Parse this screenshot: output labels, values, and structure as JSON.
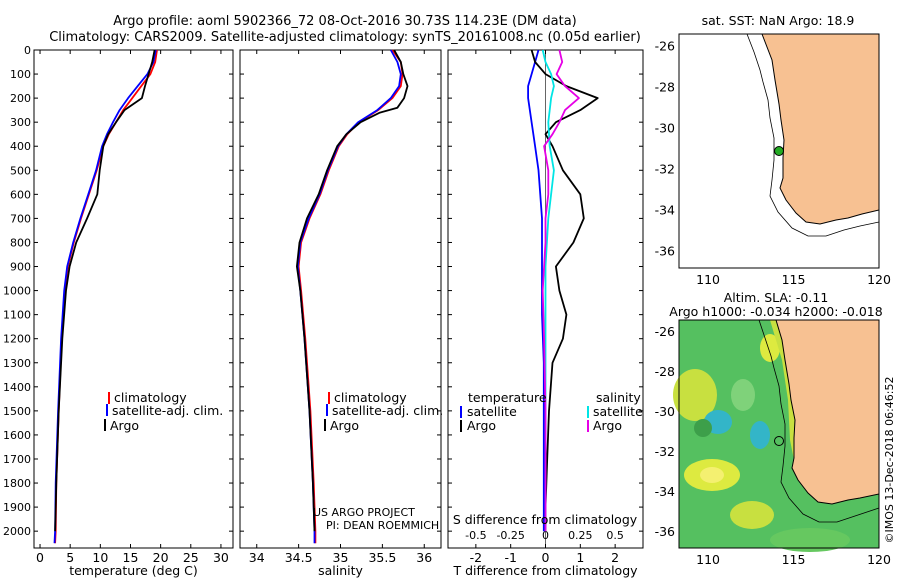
{
  "header": {
    "title_line1": "Argo profile: aoml 5902366_72 08-Oct-2016 30.73S 114.23E (DM data)",
    "title_line2": "Climatology: CARS2009. Satellite-adjusted climatology: synTS_20161008.nc (0.05d earlier)"
  },
  "colors": {
    "climatology": "#ff0000",
    "satellite": "#0000ff",
    "argo": "#000000",
    "salinity_sat": "#00e5e5",
    "salinity_argo": "#e600e6",
    "land": "#f7c192"
  },
  "pressure_ticks": [
    "0",
    "100",
    "200",
    "300",
    "400",
    "500",
    "600",
    "700",
    "800",
    "900",
    "1000",
    "1100",
    "1200",
    "1300",
    "1400",
    "1500",
    "1600",
    "1700",
    "1800",
    "1900",
    "2000"
  ],
  "chart_data": [
    {
      "type": "line",
      "name": "temperature-profile",
      "xlabel": "temperature (deg C)",
      "ylabel": "",
      "xlim": [
        -1,
        32
      ],
      "ylim": [
        2070,
        0
      ],
      "xticks": [
        "0",
        "5",
        "10",
        "15",
        "20",
        "25",
        "30"
      ],
      "legend": [
        "climatology",
        "satellite-adj. clim.",
        "Argo"
      ],
      "series": [
        {
          "name": "climatology",
          "color": "#ff0000",
          "p": [
            0,
            50,
            100,
            150,
            200,
            250,
            300,
            350,
            400,
            500,
            600,
            700,
            800,
            900,
            1000,
            1200,
            1500,
            1800,
            2000,
            2050
          ],
          "v": [
            19.4,
            19.1,
            18.3,
            16.8,
            15.3,
            13.8,
            12.6,
            11.4,
            10.5,
            9.4,
            8.1,
            6.8,
            5.6,
            4.6,
            4.1,
            3.6,
            3.1,
            2.7,
            2.6,
            2.5
          ]
        },
        {
          "name": "satellite-adj. clim.",
          "color": "#0000ff",
          "p": [
            0,
            50,
            100,
            150,
            200,
            250,
            300,
            350,
            400,
            500,
            600,
            700,
            800,
            900,
            1000,
            1200,
            1500,
            1800,
            2000,
            2050
          ],
          "v": [
            19.2,
            18.8,
            17.8,
            16.2,
            14.6,
            13.2,
            12.1,
            11.1,
            10.3,
            9.3,
            8.0,
            6.7,
            5.5,
            4.5,
            4.0,
            3.5,
            3.0,
            2.6,
            2.5,
            2.4
          ]
        },
        {
          "name": "Argo",
          "color": "#000000",
          "p": [
            0,
            50,
            100,
            150,
            200,
            250,
            300,
            350,
            400,
            500,
            600,
            700,
            800,
            900,
            1000,
            1200,
            1500,
            1800,
            2000
          ],
          "v": [
            19.0,
            18.6,
            18.0,
            17.4,
            16.9,
            14.0,
            12.6,
            11.3,
            10.5,
            9.9,
            9.5,
            7.8,
            6.0,
            4.9,
            4.3,
            3.7,
            3.1,
            2.7,
            2.5
          ]
        }
      ]
    },
    {
      "type": "line",
      "name": "salinity-profile",
      "xlabel": "salinity",
      "ylabel": "",
      "xlim": [
        33.8,
        36.2
      ],
      "ylim": [
        2070,
        0
      ],
      "xticks": [
        "34",
        "34.5",
        "35",
        "35.5",
        "36"
      ],
      "legend": [
        "climatology",
        "satellite-adj. clim.",
        "Argo"
      ],
      "series": [
        {
          "name": "climatology",
          "color": "#ff0000",
          "p": [
            0,
            50,
            100,
            150,
            200,
            250,
            300,
            350,
            400,
            450,
            500,
            600,
            700,
            800,
            900,
            1000,
            1200,
            1500,
            1800,
            2000,
            2050
          ],
          "v": [
            35.62,
            35.72,
            35.74,
            35.72,
            35.62,
            35.45,
            35.22,
            35.08,
            34.98,
            34.92,
            34.86,
            34.76,
            34.63,
            34.53,
            34.5,
            34.53,
            34.58,
            34.64,
            34.68,
            34.7,
            34.7
          ]
        },
        {
          "name": "satellite-adj. clim.",
          "color": "#0000ff",
          "p": [
            0,
            50,
            100,
            150,
            200,
            250,
            300,
            350,
            400,
            450,
            500,
            600,
            700,
            800,
            900,
            1000,
            1200,
            1500,
            1800,
            2000,
            2050
          ],
          "v": [
            35.6,
            35.68,
            35.72,
            35.7,
            35.6,
            35.44,
            35.21,
            35.07,
            34.97,
            34.91,
            34.85,
            34.75,
            34.62,
            34.52,
            34.49,
            34.52,
            34.57,
            34.63,
            34.67,
            34.69,
            34.69
          ]
        },
        {
          "name": "Argo",
          "color": "#000000",
          "p": [
            0,
            50,
            100,
            150,
            200,
            240,
            260,
            300,
            350,
            400,
            450,
            500,
            600,
            700,
            800,
            900,
            1000,
            1200,
            1500,
            1800,
            2000
          ],
          "v": [
            35.64,
            35.72,
            35.75,
            35.8,
            35.76,
            35.68,
            35.47,
            35.24,
            35.07,
            34.96,
            34.9,
            34.84,
            34.74,
            34.6,
            34.51,
            34.48,
            34.52,
            34.57,
            34.63,
            34.67,
            34.69
          ]
        }
      ]
    },
    {
      "type": "line",
      "name": "difference-profile",
      "xlabel": "T difference from climatology",
      "xlabel_top": "S difference from climatology",
      "xlim": [
        -2.8,
        2.8
      ],
      "ylim": [
        2070,
        0
      ],
      "xticks": [
        "-2",
        "-1",
        "0",
        "1",
        "2"
      ],
      "xticks_top": [
        "-0.5",
        "-0.25",
        "0",
        "0.25",
        "0.5"
      ],
      "legend": [
        "temperature satellite",
        "temperature Argo",
        "salinity satellite",
        "salinity Argo"
      ],
      "series": [
        {
          "name": "T satellite",
          "color": "#0000ff",
          "p": [
            0,
            50,
            100,
            150,
            200,
            300,
            400,
            500,
            700,
            900,
            1100,
            1300,
            1600,
            2000
          ],
          "v": [
            -0.2,
            -0.3,
            -0.4,
            -0.5,
            -0.5,
            -0.4,
            -0.3,
            -0.2,
            -0.1,
            -0.1,
            -0.1,
            -0.05,
            -0.05,
            -0.05
          ]
        },
        {
          "name": "T Argo",
          "color": "#000000",
          "p": [
            0,
            50,
            100,
            150,
            200,
            250,
            300,
            350,
            400,
            500,
            600,
            700,
            800,
            900,
            1000,
            1100,
            1200,
            1300,
            1500,
            1700,
            1900,
            2000
          ],
          "v": [
            -0.4,
            -0.3,
            0.0,
            0.6,
            1.5,
            1.0,
            0.3,
            0.0,
            0.2,
            0.5,
            1.0,
            1.1,
            0.8,
            0.3,
            0.4,
            0.6,
            0.5,
            0.2,
            0.1,
            0.05,
            0.0,
            0.0
          ]
        },
        {
          "name": "S satellite",
          "color": "#00e5e5",
          "p": [
            0,
            50,
            100,
            150,
            200,
            300,
            400,
            500,
            700,
            900,
            1200,
            1600,
            2000
          ],
          "v": [
            -0.02,
            0.0,
            0.04,
            0.06,
            0.04,
            0.02,
            0.03,
            0.06,
            0.02,
            0.0,
            0.0,
            0.0,
            0.0
          ]
        },
        {
          "name": "S Argo",
          "color": "#e600e6",
          "p": [
            0,
            50,
            100,
            150,
            200,
            250,
            300,
            350,
            400,
            500,
            600,
            700,
            800,
            900,
            1000,
            1200,
            1500,
            1800,
            2000
          ],
          "v": [
            0.1,
            0.12,
            0.08,
            0.14,
            0.24,
            0.14,
            0.1,
            0.05,
            -0.01,
            0.02,
            0.02,
            0.0,
            0.0,
            -0.01,
            -0.02,
            -0.01,
            0.0,
            0.0,
            0.0
          ]
        }
      ]
    }
  ],
  "annotations": {
    "project_line1": "US ARGO PROJECT",
    "project_line2": "PI: DEAN ROEMMICH",
    "temperature_heading": "temperature",
    "salinity_heading": "salinity",
    "satellite_label": "satellite",
    "argo_label": "Argo"
  },
  "map_top": {
    "title": "sat. SST: NaN Argo: 18.9",
    "lat_ticks": [
      "-26",
      "-28",
      "-30",
      "-32",
      "-34",
      "-36"
    ],
    "lon_ticks": [
      "110",
      "115",
      "120"
    ],
    "profile_lon": 114.23,
    "profile_lat": -30.73
  },
  "map_bottom": {
    "title_line1": "Altim. SLA: -0.11",
    "title_line2": "Argo h1000: -0.034 h2000: -0.018",
    "lat_ticks": [
      "-26",
      "-28",
      "-30",
      "-32",
      "-34",
      "-36"
    ],
    "lon_ticks": [
      "110",
      "115",
      "120"
    ],
    "profile_lon": 114.23,
    "profile_lat": -30.73
  },
  "footer": {
    "credit": "©IMOS 13-Dec-2018 06:46:52"
  }
}
